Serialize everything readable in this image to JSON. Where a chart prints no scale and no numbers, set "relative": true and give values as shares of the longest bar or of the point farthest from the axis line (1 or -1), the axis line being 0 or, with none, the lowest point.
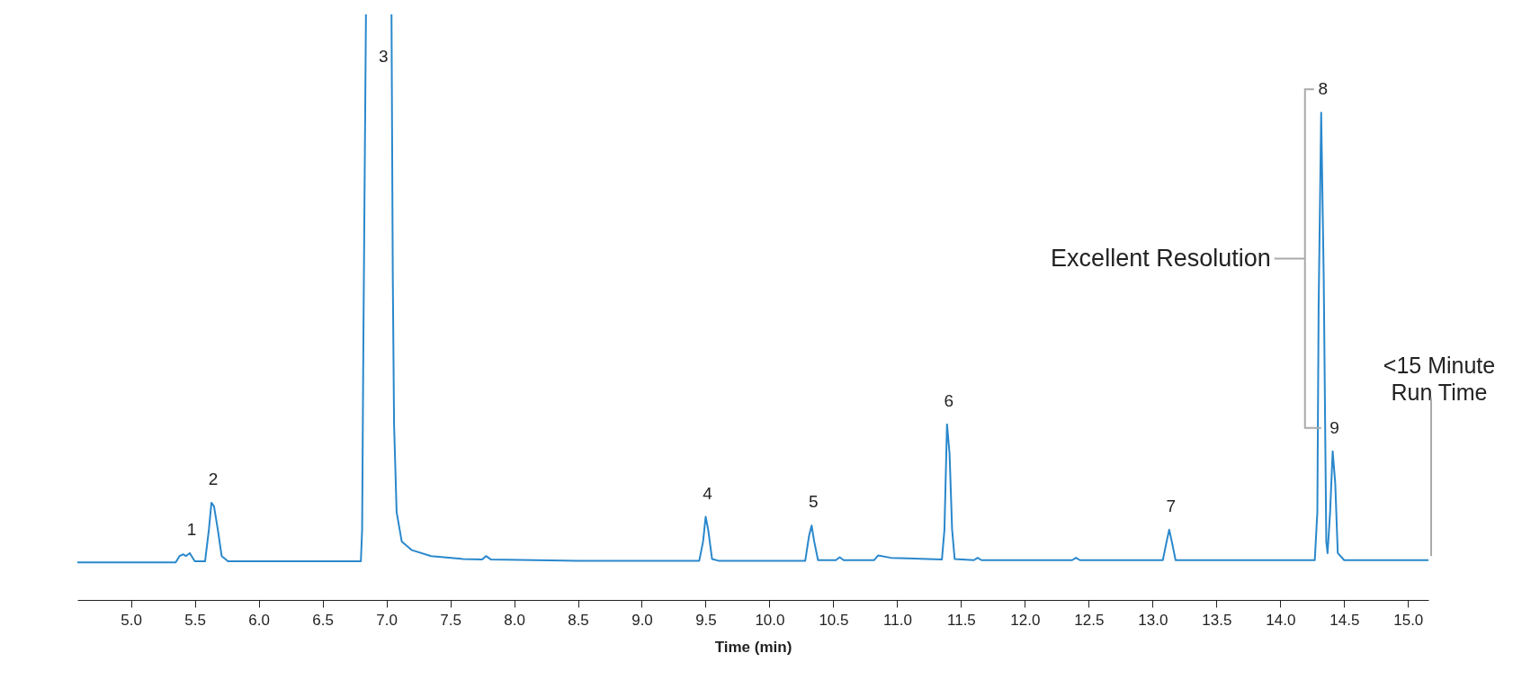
{
  "chart_data": {
    "type": "line",
    "relative": true,
    "xlabel": "Time (min)",
    "xlim": [
      4.58,
      15.16
    ],
    "xticks": [
      {
        "value": 5,
        "label": "5.0"
      },
      5.5,
      {
        "value": 6,
        "label": "6.0"
      },
      6.5,
      {
        "value": 7,
        "label": "7.0"
      },
      7.5,
      {
        "value": 8,
        "label": "8.0"
      },
      8.5,
      {
        "value": 9,
        "label": "9.0"
      },
      9.5,
      {
        "value": 10,
        "label": "10.0"
      },
      10.5,
      {
        "value": 11,
        "label": "11.0"
      },
      11.5,
      {
        "value": 12,
        "label": "12.0"
      },
      12.5,
      {
        "value": 13,
        "label": "13.0"
      },
      13.5,
      {
        "value": 14,
        "label": "14.0"
      },
      14.5,
      {
        "value": 15,
        "label": "15.0"
      }
    ],
    "x": [
      4.58,
      5.35,
      5.38,
      5.41,
      5.43,
      5.46,
      5.5,
      5.58,
      5.61,
      5.63,
      5.65,
      5.68,
      5.71,
      5.76,
      6.8,
      6.81,
      6.82,
      6.84,
      6.94,
      7.04,
      7.05,
      7.06,
      7.08,
      7.12,
      7.2,
      7.35,
      7.6,
      7.75,
      7.78,
      7.82,
      8.5,
      9.45,
      9.48,
      9.5,
      9.52,
      9.55,
      9.6,
      10.28,
      10.31,
      10.33,
      10.35,
      10.38,
      10.52,
      10.55,
      10.58,
      10.82,
      10.85,
      10.95,
      11.35,
      11.37,
      11.39,
      11.41,
      11.43,
      11.45,
      11.6,
      11.63,
      11.66,
      12.37,
      12.4,
      12.43,
      13.08,
      13.11,
      13.13,
      13.15,
      13.18,
      14.27,
      14.29,
      14.3,
      14.32,
      14.34,
      14.36,
      14.37,
      14.39,
      14.41,
      14.43,
      14.45,
      14.5,
      15.16
    ],
    "series": [
      {
        "color": "#2a88cc",
        "values": [
          0.064,
          0.064,
          0.075,
          0.078,
          0.075,
          0.08,
          0.066,
          0.066,
          0.12,
          0.166,
          0.16,
          0.12,
          0.075,
          0.066,
          0.066,
          0.12,
          0.45,
          1,
          null,
          1,
          0.555,
          0.3,
          0.15,
          0.1,
          0.085,
          0.075,
          0.07,
          0.069,
          0.075,
          0.069,
          0.067,
          0.067,
          0.1,
          0.142,
          0.12,
          0.07,
          0.067,
          0.067,
          0.11,
          0.127,
          0.1,
          0.068,
          0.068,
          0.073,
          0.068,
          0.068,
          0.076,
          0.072,
          0.069,
          0.12,
          0.3,
          0.25,
          0.12,
          0.07,
          0.068,
          0.072,
          0.068,
          0.068,
          0.072,
          0.068,
          0.068,
          0.1,
          0.12,
          0.1,
          0.068,
          0.068,
          0.15,
          0.5,
          0.832,
          0.55,
          0.1,
          0.08,
          0.15,
          0.254,
          0.2,
          0.08,
          0.068,
          0.068
        ]
      }
    ],
    "annotations": [
      {
        "text": "1",
        "x": 5.46,
        "y": 0.08
      },
      {
        "text": "2",
        "x": 5.63,
        "y": 0.166
      },
      {
        "text": "3",
        "x": 7.04,
        "y": 1
      },
      {
        "text": "4",
        "x": 9.5,
        "y": 0.142
      },
      {
        "text": "5",
        "x": 10.33,
        "y": 0.127
      },
      {
        "text": "6",
        "x": 11.39,
        "y": 0.3
      },
      {
        "text": "7",
        "x": 13.13,
        "y": 0.12
      },
      {
        "text": "8",
        "x": 14.32,
        "y": 0.832
      },
      {
        "text": "9",
        "x": 14.41,
        "y": 0.254
      },
      "Excellent Resolution",
      "<15 Minute\nRun Time"
    ]
  }
}
